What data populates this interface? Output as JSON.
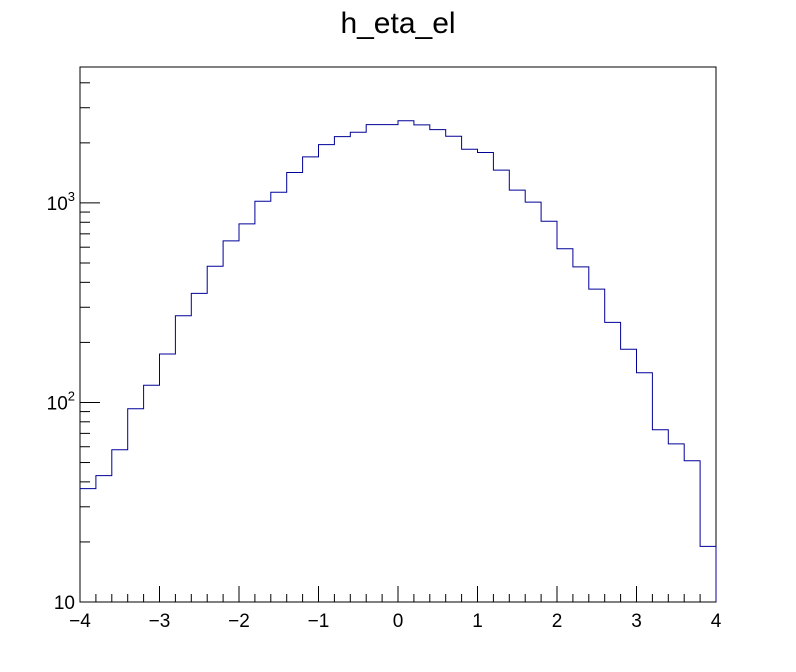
{
  "chart_data": {
    "type": "histogram",
    "title": "h_eta_el",
    "xlabel": "",
    "ylabel": "",
    "xlim": [
      -4,
      4
    ],
    "ylim": [
      10,
      4800
    ],
    "y_scale": "log",
    "grid": false,
    "legend": "none",
    "line_color": "#000099",
    "bin_edges": [
      -4.0,
      -3.8,
      -3.6,
      -3.4,
      -3.2,
      -3.0,
      -2.8,
      -2.6,
      -2.4,
      -2.2,
      -2.0,
      -1.8,
      -1.6,
      -1.4,
      -1.2,
      -1.0,
      -0.8,
      -0.6,
      -0.4,
      -0.2,
      0.0,
      0.2,
      0.4,
      0.6,
      0.8,
      1.0,
      1.2,
      1.4,
      1.6,
      1.8,
      2.0,
      2.2,
      2.4,
      2.6,
      2.8,
      3.0,
      3.2,
      3.4,
      3.6,
      3.8,
      4.0
    ],
    "values": [
      37,
      43,
      58,
      93,
      122,
      175,
      272,
      352,
      482,
      645,
      785,
      1020,
      1130,
      1420,
      1700,
      1960,
      2150,
      2260,
      2470,
      2470,
      2580,
      2460,
      2330,
      2160,
      1860,
      1790,
      1460,
      1160,
      1010,
      810,
      590,
      478,
      370,
      252,
      185,
      141,
      73,
      62,
      51,
      19
    ],
    "x_tick_labels": [
      "−4",
      "−3",
      "−2",
      "−1",
      "0",
      "1",
      "2",
      "3",
      "4"
    ],
    "y_tick_labels": [
      {
        "base": "10",
        "exp": ""
      },
      {
        "base": "10",
        "exp": "2"
      },
      {
        "base": "10",
        "exp": "3"
      }
    ]
  }
}
